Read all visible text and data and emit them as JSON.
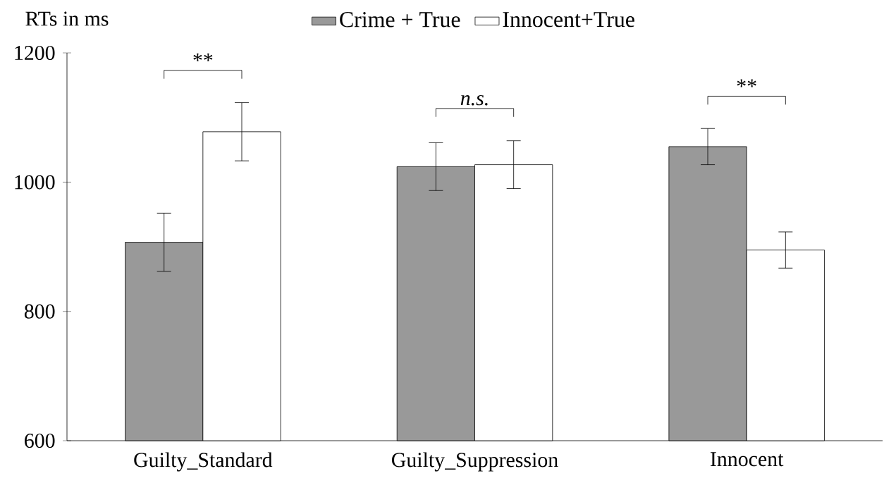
{
  "chart_data": {
    "type": "bar",
    "ylabel": "RTs in ms",
    "categories": [
      "Guilty_Standard",
      "Guilty_Suppression",
      "Innocent"
    ],
    "series": [
      {
        "name": "Crime + True",
        "color": "#999999",
        "values": [
          907,
          1024,
          1055
        ],
        "errors": [
          45,
          37,
          28
        ]
      },
      {
        "name": "Innocent+True",
        "color": "#ffffff",
        "values": [
          1078,
          1027,
          895
        ],
        "errors": [
          45,
          37,
          28
        ]
      }
    ],
    "ylim": [
      600,
      1200
    ],
    "yticks": [
      600,
      800,
      1000,
      1200
    ],
    "grid": false,
    "legend": "top",
    "annotations": [
      "**",
      "*n.s.*",
      "**"
    ]
  }
}
